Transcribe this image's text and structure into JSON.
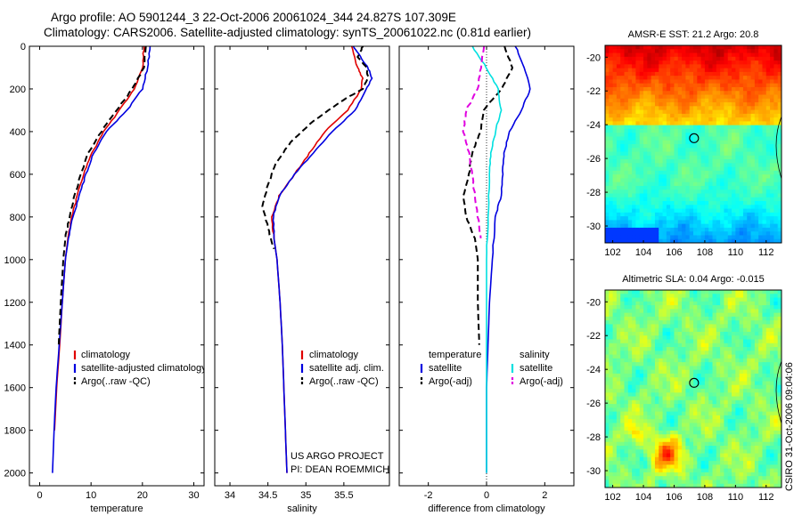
{
  "header": {
    "line1": "Argo profile: AO 5901244_3 22-Oct-2006 20061024_344 24.827S 107.309E",
    "line2": "Climatology: CARS2006. Satellite-adjusted climatology: synTS_20061022.nc (0.81d earlier)"
  },
  "side_label": "CSIRO 31-Oct-2006 09:04:06",
  "credits": [
    "US ARGO PROJECT",
    "PI: DEAN ROEMMICH"
  ],
  "colors": {
    "climatology": "#e00000",
    "satellite": "#0000e0",
    "argo": "#000000",
    "sat_salinity": "#00e0e0",
    "argo_salinity": "#e000e0"
  },
  "chart_data": [
    {
      "type": "line",
      "xlabel": "temperature",
      "xlim": [
        -2,
        32
      ],
      "ylim": [
        2060,
        0
      ],
      "xticks": [
        0,
        10,
        20,
        30
      ],
      "yticks": [
        0,
        200,
        400,
        600,
        800,
        1000,
        1200,
        1400,
        1600,
        1800,
        2000
      ],
      "legend": [
        "climatology",
        "satellite-adjusted climatology",
        "Argo(..raw -QC)"
      ],
      "series": [
        {
          "name": "climatology",
          "style": "solid",
          "color": "#e00000",
          "points": [
            [
              20.3,
              0
            ],
            [
              20.0,
              100
            ],
            [
              18.5,
              200
            ],
            [
              15.5,
              300
            ],
            [
              12.5,
              400
            ],
            [
              10.2,
              500
            ],
            [
              8.5,
              600
            ],
            [
              7.3,
              700
            ],
            [
              6.3,
              800
            ],
            [
              5.5,
              900
            ],
            [
              5.0,
              1000
            ],
            [
              4.4,
              1200
            ],
            [
              3.9,
              1400
            ],
            [
              3.3,
              1600
            ],
            [
              2.9,
              1800
            ]
          ]
        },
        {
          "name": "satellite-adjusted climatology",
          "style": "solid",
          "color": "#0000e0",
          "points": [
            [
              21.5,
              0
            ],
            [
              21.0,
              100
            ],
            [
              20.0,
              200
            ],
            [
              17.0,
              300
            ],
            [
              13.0,
              400
            ],
            [
              10.5,
              500
            ],
            [
              9.0,
              600
            ],
            [
              7.7,
              700
            ],
            [
              6.5,
              800
            ],
            [
              5.6,
              900
            ],
            [
              5.0,
              1000
            ],
            [
              4.4,
              1200
            ],
            [
              3.8,
              1400
            ],
            [
              3.2,
              1600
            ],
            [
              2.8,
              1800
            ],
            [
              2.5,
              2000
            ]
          ]
        },
        {
          "name": "Argo(..raw -QC)",
          "style": "dashed",
          "color": "#000000",
          "points": [
            [
              20.7,
              0
            ],
            [
              20.3,
              100
            ],
            [
              18.0,
              200
            ],
            [
              15.0,
              300
            ],
            [
              12.0,
              400
            ],
            [
              9.5,
              500
            ],
            [
              8.0,
              600
            ],
            [
              6.8,
              700
            ],
            [
              5.8,
              800
            ],
            [
              5.0,
              900
            ],
            [
              4.6,
              1000
            ],
            [
              4.1,
              1200
            ],
            [
              3.7,
              1400
            ]
          ]
        }
      ]
    },
    {
      "type": "line",
      "xlabel": "salinity",
      "xlim": [
        33.8,
        36.1
      ],
      "ylim": [
        2060,
        0
      ],
      "xticks": [
        34,
        34.5,
        35,
        35.5
      ],
      "yticks": [
        0,
        200,
        400,
        600,
        800,
        1000,
        1200,
        1400,
        1600,
        1800,
        2000
      ],
      "legend": [
        "climatology",
        "satellite adj. clim.",
        "Argo(..raw -QC)"
      ],
      "series": [
        {
          "name": "climatology",
          "style": "solid",
          "color": "#e00000",
          "points": [
            [
              35.6,
              0
            ],
            [
              35.68,
              100
            ],
            [
              35.75,
              150
            ],
            [
              35.73,
              200
            ],
            [
              35.55,
              300
            ],
            [
              35.25,
              400
            ],
            [
              35.05,
              500
            ],
            [
              34.85,
              600
            ],
            [
              34.65,
              700
            ],
            [
              34.55,
              800
            ],
            [
              34.58,
              900
            ],
            [
              34.62,
              1000
            ],
            [
              34.66,
              1200
            ],
            [
              34.69,
              1400
            ],
            [
              34.71,
              1600
            ],
            [
              34.73,
              1800
            ],
            [
              34.75,
              2000
            ]
          ]
        },
        {
          "name": "satellite adj. clim.",
          "style": "solid",
          "color": "#0000e0",
          "points": [
            [
              35.62,
              0
            ],
            [
              35.72,
              50
            ],
            [
              35.82,
              100
            ],
            [
              35.87,
              150
            ],
            [
              35.8,
              200
            ],
            [
              35.65,
              300
            ],
            [
              35.35,
              400
            ],
            [
              35.1,
              500
            ],
            [
              34.85,
              600
            ],
            [
              34.65,
              700
            ],
            [
              34.57,
              800
            ],
            [
              34.58,
              900
            ],
            [
              34.62,
              1000
            ],
            [
              34.66,
              1200
            ],
            [
              34.69,
              1400
            ],
            [
              34.71,
              1600
            ],
            [
              34.73,
              1800
            ],
            [
              34.75,
              2000
            ]
          ]
        },
        {
          "name": "Argo(..raw -QC)",
          "style": "dashed",
          "color": "#000000",
          "points": [
            [
              35.75,
              0
            ],
            [
              35.68,
              50
            ],
            [
              35.8,
              100
            ],
            [
              35.82,
              150
            ],
            [
              35.75,
              200
            ],
            [
              35.5,
              250
            ],
            [
              35.1,
              350
            ],
            [
              34.8,
              450
            ],
            [
              34.6,
              550
            ],
            [
              34.5,
              650
            ],
            [
              34.43,
              750
            ],
            [
              34.5,
              850
            ],
            [
              34.58,
              950
            ]
          ]
        }
      ]
    },
    {
      "type": "line",
      "xlabel": "difference from climatology",
      "xlim": [
        -3,
        3
      ],
      "ylim": [
        2060,
        0
      ],
      "xticks": [
        -2,
        0,
        2
      ],
      "yticks": [
        0,
        200,
        400,
        600,
        800,
        1000,
        1200,
        1400,
        1600,
        1800,
        2000
      ],
      "legend_temperature": {
        "title": "temperature",
        "items": [
          "satellite",
          "Argo(-adj)"
        ]
      },
      "legend_salinity": {
        "title": "salinity",
        "items": [
          "satellite",
          "Argo(-adj)"
        ]
      },
      "series": [
        {
          "name": "temperature satellite",
          "style": "solid",
          "color": "#0000e0",
          "points": [
            [
              1.0,
              0
            ],
            [
              1.3,
              100
            ],
            [
              1.5,
              200
            ],
            [
              1.2,
              300
            ],
            [
              0.8,
              400
            ],
            [
              0.6,
              500
            ],
            [
              0.55,
              600
            ],
            [
              0.5,
              700
            ],
            [
              0.3,
              800
            ],
            [
              0.2,
              1000
            ],
            [
              0.1,
              1200
            ],
            [
              0.05,
              1400
            ],
            [
              0.0,
              1600
            ],
            [
              0.0,
              2000
            ]
          ]
        },
        {
          "name": "temperature Argo(-adj)",
          "style": "dashed",
          "color": "#000000",
          "points": [
            [
              0.6,
              0
            ],
            [
              0.9,
              100
            ],
            [
              0.5,
              200
            ],
            [
              -0.1,
              300
            ],
            [
              -0.2,
              400
            ],
            [
              -0.5,
              500
            ],
            [
              -0.6,
              600
            ],
            [
              -0.8,
              700
            ],
            [
              -0.7,
              800
            ],
            [
              -0.4,
              900
            ],
            [
              -0.3,
              1000
            ],
            [
              -0.3,
              1200
            ],
            [
              -0.25,
              1400
            ]
          ]
        },
        {
          "name": "salinity satellite",
          "style": "solid",
          "color": "#00e0e0",
          "points": [
            [
              -0.5,
              0
            ],
            [
              0.0,
              100
            ],
            [
              0.4,
              200
            ],
            [
              0.5,
              300
            ],
            [
              0.3,
              400
            ],
            [
              0.15,
              500
            ],
            [
              0.1,
              600
            ],
            [
              0.05,
              800
            ],
            [
              0.0,
              1000
            ],
            [
              0.0,
              2000
            ]
          ]
        },
        {
          "name": "salinity Argo(-adj)",
          "style": "dashed",
          "color": "#e000e0",
          "points": [
            [
              -0.1,
              0
            ],
            [
              -0.2,
              100
            ],
            [
              -0.3,
              200
            ],
            [
              -0.7,
              300
            ],
            [
              -0.8,
              400
            ],
            [
              -0.6,
              500
            ],
            [
              -0.5,
              600
            ],
            [
              -0.4,
              700
            ],
            [
              -0.3,
              800
            ],
            [
              -0.2,
              900
            ]
          ]
        }
      ]
    },
    {
      "type": "heatmap",
      "title": "AMSR-E SST: 21.2 Argo: 20.8",
      "xlim": [
        101.5,
        113
      ],
      "ylim": [
        -31,
        -19.3
      ],
      "xticks": [
        102,
        104,
        106,
        108,
        110,
        112
      ],
      "yticks": [
        -20,
        -22,
        -24,
        -26,
        -28,
        -30
      ],
      "marker": [
        107.3,
        -24.8
      ]
    },
    {
      "type": "heatmap",
      "title": "Altimetric SLA: 0.04 Argo: -0.015",
      "xlim": [
        101.5,
        113
      ],
      "ylim": [
        -31,
        -19.3
      ],
      "xticks": [
        102,
        104,
        106,
        108,
        110,
        112
      ],
      "yticks": [
        -20,
        -22,
        -24,
        -26,
        -28,
        -30
      ],
      "marker": [
        107.3,
        -24.8
      ]
    }
  ]
}
